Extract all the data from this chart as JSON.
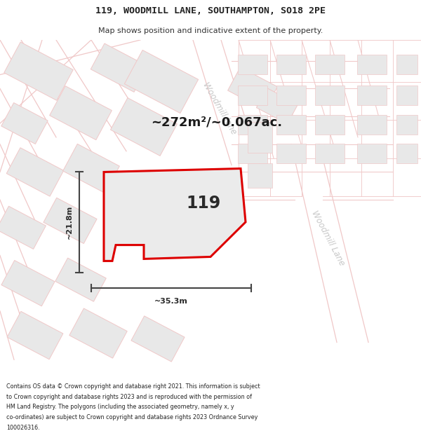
{
  "title_line1": "119, WOODMILL LANE, SOUTHAMPTON, SO18 2PE",
  "title_line2": "Map shows position and indicative extent of the property.",
  "area_text": "~272m²/~0.067ac.",
  "number_label": "119",
  "dim_height": "~21.8m",
  "dim_width": "~35.3m",
  "street_label_top": "Woodmill lane",
  "street_label_right": "Woodmill Lane",
  "footer_text": "Contains OS data © Crown copyright and database right 2021. This information is subject to Crown copyright and database rights 2023 and is reproduced with the permission of HM Land Registry. The polygons (including the associated geometry, namely x, y co-ordinates) are subject to Crown copyright and database rights 2023 Ordnance Survey 100026316.",
  "bg_color": "#f8f8f8",
  "road_color": "#f0c8c8",
  "building_color": "#e8e8e8",
  "plot_outline_color": "#dd0000",
  "plot_fill_color": "#ebebeb",
  "dim_line_color": "#444444",
  "street_text_color": "#c8c8c8"
}
